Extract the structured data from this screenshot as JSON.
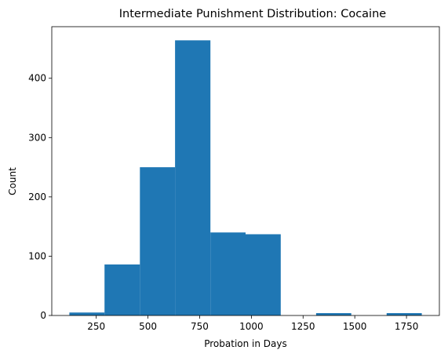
{
  "chart_data": {
    "type": "bar",
    "title": "Intermediate Punishment Distribution: Cocaine",
    "xlabel": "Probation in Days",
    "ylabel": "Count",
    "bin_edges": [
      120,
      290,
      461,
      631,
      802,
      972,
      1142,
      1313,
      1483,
      1654,
      1824
    ],
    "counts": [
      5,
      86,
      250,
      464,
      140,
      137,
      0,
      4,
      0,
      4
    ],
    "xlim": [
      35,
      1909
    ],
    "ylim": [
      0,
      487
    ],
    "xticks": [
      250,
      500,
      750,
      1000,
      1250,
      1500,
      1750
    ],
    "yticks": [
      0,
      100,
      200,
      300,
      400
    ],
    "bar_color": "#1f77b4",
    "grid": false,
    "legend": "none"
  }
}
